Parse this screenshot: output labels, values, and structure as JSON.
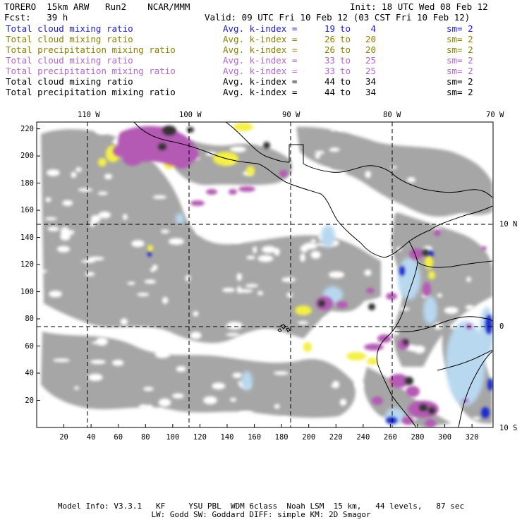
{
  "header": {
    "model": "TORERO  15km ARW   Run2    NCAR/MMM",
    "init": "Init: 18 UTC Wed 08 Feb 12",
    "fcst": "Fcst:   39 h",
    "valid": "Valid: 09 UTC Fri 10 Feb 12 (03 CST Fri 10 Feb 12)"
  },
  "legend": [
    {
      "label": "Total cloud mixing ratio",
      "avg": "Avg. k-index =",
      "hi": "19",
      "to": "to",
      "lo": "4",
      "sm": "sm= 2",
      "color": "#1a1acc"
    },
    {
      "label": "Total cloud mixing ratio",
      "avg": "Avg. k-index =",
      "hi": "26",
      "to": "to",
      "lo": "20",
      "sm": "sm= 2",
      "color": "#8c7e00"
    },
    {
      "label": "Total precipitation mixing ratio",
      "avg": "Avg. k-index =",
      "hi": "26",
      "to": "to",
      "lo": "20",
      "sm": "sm= 2",
      "color": "#8c7e00"
    },
    {
      "label": "Total cloud mixing ratio",
      "avg": "Avg. k-index =",
      "hi": "33",
      "to": "to",
      "lo": "25",
      "sm": "sm= 2",
      "color": "#b366cc"
    },
    {
      "label": "Total precipitation mixing ratio",
      "avg": "Avg. k-index =",
      "hi": "33",
      "to": "to",
      "lo": "25",
      "sm": "sm= 2",
      "color": "#b366cc"
    },
    {
      "label": "Total cloud mixing ratio",
      "avg": "Avg. k-index =",
      "hi": "44",
      "to": "to",
      "lo": "34",
      "sm": "sm= 2",
      "color": "#000000"
    },
    {
      "label": "Total precipitation mixing ratio",
      "avg": "Avg. k-index =",
      "hi": "44",
      "to": "to",
      "lo": "34",
      "sm": "sm= 2",
      "color": "#000000"
    }
  ],
  "map": {
    "x_ticks": [
      "20",
      "40",
      "60",
      "80",
      "100",
      "120",
      "140",
      "160",
      "180",
      "200",
      "220",
      "240",
      "260",
      "280",
      "300",
      "320"
    ],
    "y_ticks": [
      "20",
      "40",
      "60",
      "80",
      "100",
      "120",
      "140",
      "160",
      "180",
      "200",
      "220"
    ],
    "lon_labels": [
      "110 W",
      "100 W",
      "90 W",
      "80 W",
      "70 W"
    ],
    "lat_labels": [
      "10 N",
      "0",
      "10 S"
    ],
    "colors": {
      "background_cloud": "#a6a6a6",
      "blue_light": "#b8d8f0",
      "blue_dark": "#1a2acc",
      "yellow": "#f4f046",
      "purple": "#b45ab4",
      "black_core": "#333333",
      "coast": "#000000",
      "grid": "#000000"
    }
  },
  "footer": {
    "line1": "Model Info: V3.3.1   KF     YSU PBL  WDM 6class  Noah LSM  15 km,   44 levels,   87 sec",
    "line2": "LW: Godd SW: Goddard DIFF: simple KM: 2D Smagor"
  }
}
